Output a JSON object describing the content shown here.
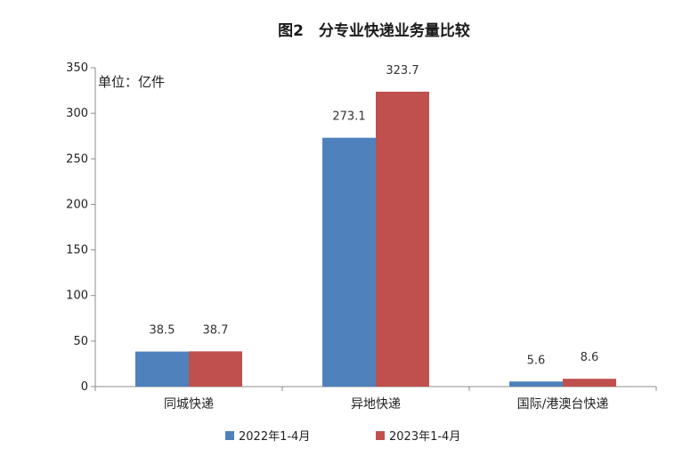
{
  "chart_data": {
    "type": "bar",
    "title": "图2　分专业快递业务量比较",
    "unit_label": "单位：亿件",
    "categories": [
      "同城快递",
      "异地快递",
      "国际/港澳台快递"
    ],
    "series": [
      {
        "name": "2022年1-4月",
        "values": [
          38.5,
          273.1,
          5.6
        ],
        "color": "#4f81bd"
      },
      {
        "name": "2023年1-4月",
        "values": [
          38.7,
          323.7,
          8.6
        ],
        "color": "#c0504d"
      }
    ],
    "data_labels": [
      [
        "38.5",
        "273.1",
        "5.6"
      ],
      [
        "38.7",
        "323.7",
        "8.6"
      ]
    ],
    "ylim": [
      0,
      350
    ],
    "yticks": [
      0,
      50,
      100,
      150,
      200,
      250,
      300,
      350
    ],
    "grid": false,
    "legend_position": "bottom"
  }
}
